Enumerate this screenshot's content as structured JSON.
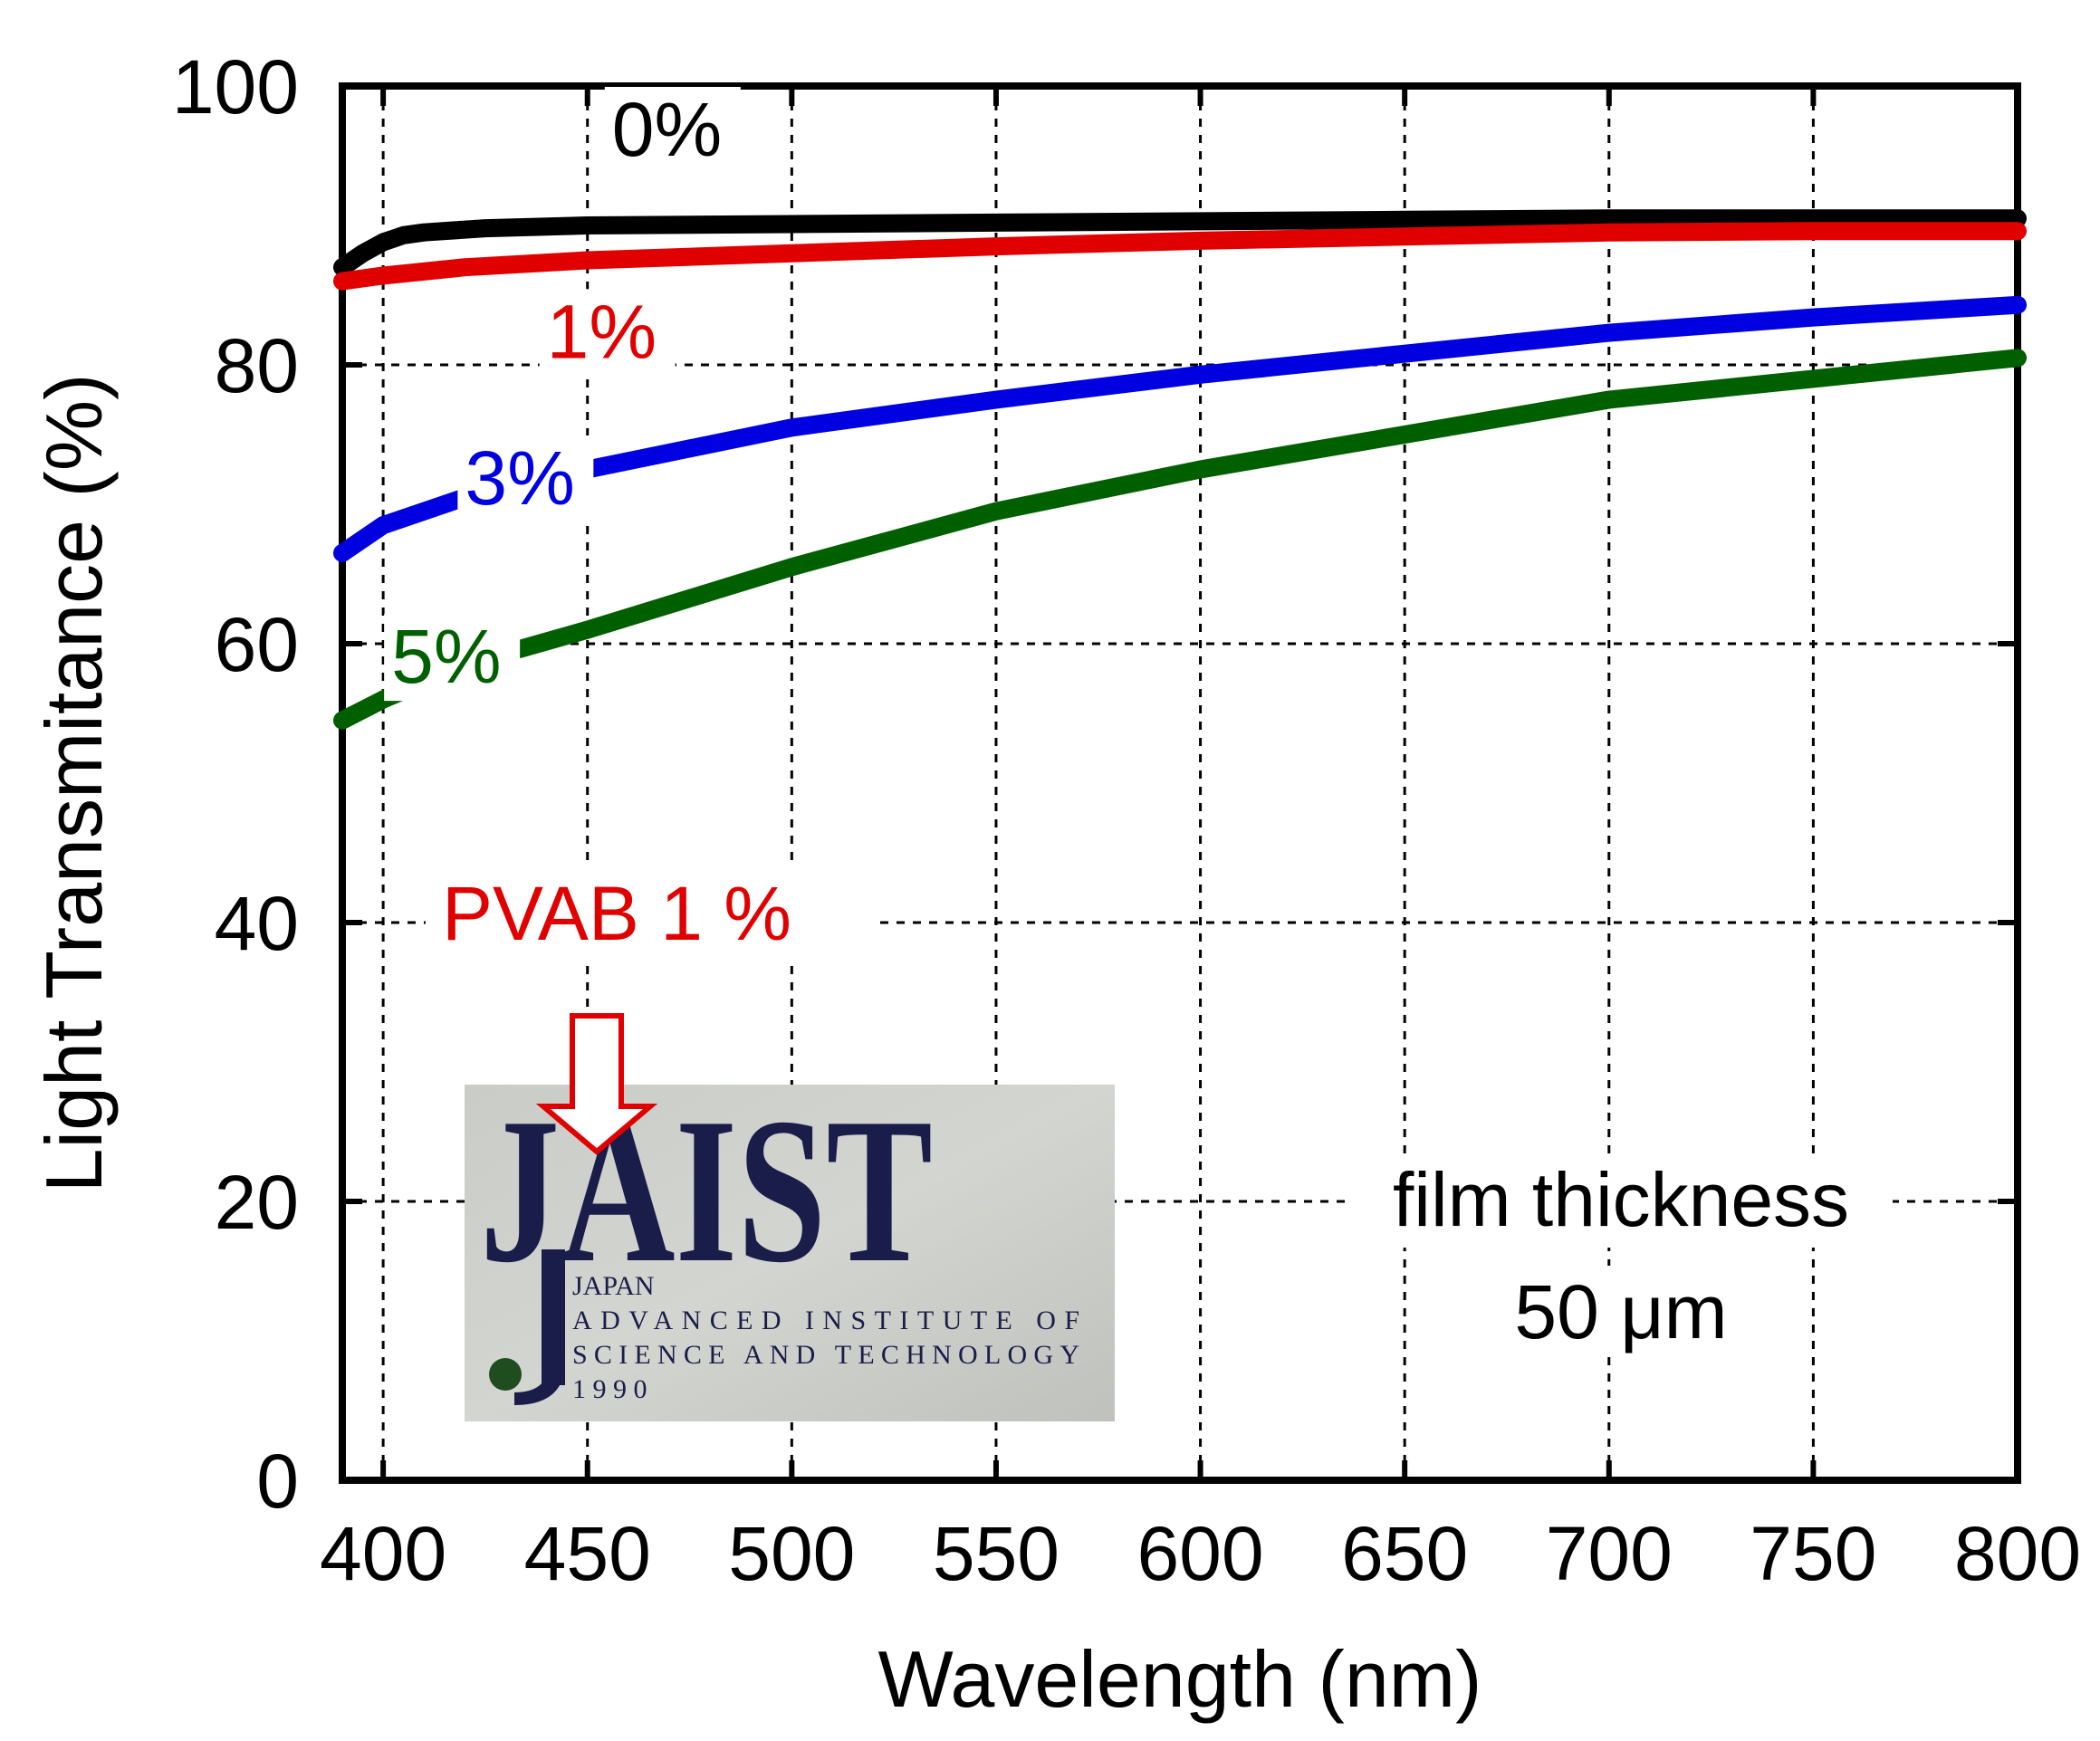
{
  "chart_data": {
    "type": "line",
    "title": "",
    "xlabel": "Wavelength (nm)",
    "ylabel": "Light Transmitance (%)",
    "xlim": [
      390,
      800
    ],
    "ylim": [
      0,
      100
    ],
    "xticks": [
      400,
      450,
      500,
      550,
      600,
      650,
      700,
      750,
      800
    ],
    "yticks": [
      0,
      20,
      40,
      60,
      80,
      100
    ],
    "grid": true,
    "grid_style": "dashed",
    "series": [
      {
        "name": "0%",
        "color": "#000000",
        "x": [
          390,
          395,
          400,
          405,
          410,
          425,
          450,
          500,
          550,
          600,
          650,
          700,
          750,
          800
        ],
        "values": [
          87.0,
          88.0,
          88.8,
          89.3,
          89.5,
          89.8,
          90.0,
          90.1,
          90.2,
          90.3,
          90.4,
          90.5,
          90.5,
          90.5
        ],
        "label_text": "0%",
        "label_x": 456,
        "label_y": 95
      },
      {
        "name": "1%",
        "color": "#e00000",
        "x": [
          390,
          400,
          420,
          450,
          500,
          550,
          600,
          650,
          700,
          750,
          800
        ],
        "values": [
          86.0,
          86.4,
          87.0,
          87.5,
          88.0,
          88.5,
          88.9,
          89.2,
          89.5,
          89.6,
          89.6
        ],
        "label_text": "1%",
        "label_x": 440,
        "label_y": 80.5
      },
      {
        "name": "3%",
        "color": "#0000e0",
        "x": [
          390,
          400,
          420,
          450,
          500,
          550,
          600,
          650,
          700,
          750,
          800
        ],
        "values": [
          66.5,
          68.5,
          70.5,
          72.5,
          75.5,
          77.5,
          79.3,
          80.8,
          82.3,
          83.4,
          84.3
        ],
        "label_text": "3%",
        "label_x": 420,
        "label_y": 70
      },
      {
        "name": "5%",
        "color": "#006000",
        "x": [
          390,
          400,
          420,
          450,
          500,
          550,
          600,
          650,
          700,
          750,
          800
        ],
        "values": [
          54.5,
          56.0,
          58.5,
          61.0,
          65.5,
          69.5,
          72.5,
          75.0,
          77.5,
          79.0,
          80.5
        ],
        "label_text": "5%",
        "label_x": 402,
        "label_y": 57.2
      }
    ],
    "annotations": {
      "pvab_label": "PVAB 1 %",
      "film_line1": "film thickness",
      "film_line2": "50 μm"
    },
    "inset_logo": {
      "mark": "JAIST",
      "line1": "JAPAN",
      "line2": "ADVANCED   INSTITUTE   OF",
      "line3": "SCIENCE AND TECHNOLOGY",
      "line4": "1 9 9 0"
    }
  }
}
